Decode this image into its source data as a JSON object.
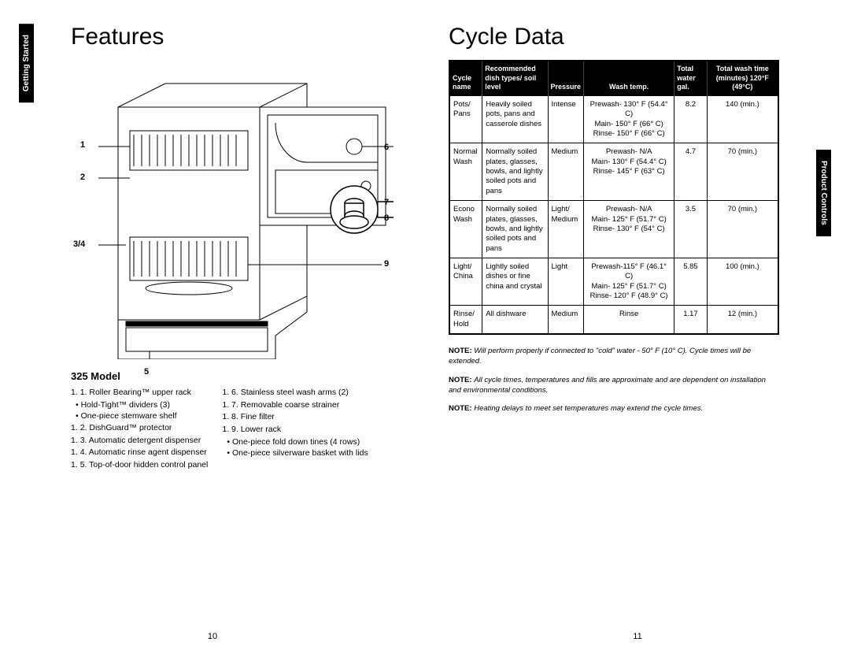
{
  "left": {
    "tab": "Getting Started",
    "title": "Features",
    "model_heading": "325 Model",
    "callouts": {
      "c1": "1",
      "c2": "2",
      "c34": "3/4",
      "c5": "5",
      "c6": "6",
      "c7": "7",
      "c8": "8",
      "c9": "9"
    },
    "features_col1": [
      {
        "n": "1.",
        "text": "Roller Bearing™ upper rack",
        "subs": [
          "Hold-Tight™ dividers (3)",
          "One-piece stemware shelf"
        ]
      },
      {
        "n": "2.",
        "text": "DishGuard™ protector"
      },
      {
        "n": "3.",
        "text": "Automatic detergent dispenser"
      },
      {
        "n": "4.",
        "text": "Automatic rinse agent dispenser"
      },
      {
        "n": "5.",
        "text": "Top-of-door hidden control panel"
      }
    ],
    "features_col2": [
      {
        "n": "6.",
        "text": "Stainless steel wash arms (2)"
      },
      {
        "n": "7.",
        "text": "Removable coarse strainer"
      },
      {
        "n": "8.",
        "text": "Fine filter"
      },
      {
        "n": "9.",
        "text": "Lower rack",
        "subs": [
          "One-piece fold down tines (4 rows)",
          "One-piece silverware basket with lids"
        ]
      }
    ],
    "page_number": "10"
  },
  "right": {
    "tab": "Product Controls",
    "title": "Cycle Data",
    "table": {
      "headers": {
        "cycle": "Cycle name",
        "dish": "Recommended dish types/ soil level",
        "pressure": "Pressure",
        "wash": "Wash temp.",
        "water": "Total water gal.",
        "time": "Total wash time (minutes) 120°F (49°C)"
      },
      "rows": [
        {
          "cycle": "Pots/ Pans",
          "dish": "Heavily soiled pots, pans and casserole dishes",
          "pressure": "Intense",
          "wash": "Prewash- 130° F (54.4° C)\nMain- 150° F (66° C)\nRinse- 150° F (66° C)",
          "water": "8.2",
          "time": "140 (min.)"
        },
        {
          "cycle": "Normal Wash",
          "dish": "Normally soiled plates, glasses, bowls, and lightly soiled pots and pans",
          "pressure": "Medium",
          "wash": "Prewash- N/A\nMain- 130° F (54.4° C)\nRinse- 145° F (63° C)",
          "water": "4.7",
          "time": "70 (min.)"
        },
        {
          "cycle": "Econo Wash",
          "dish": "Normally soiled plates, glasses, bowls, and lightly soiled pots and pans",
          "pressure": "Light/ Medium",
          "wash": "Prewash- N/A\nMain- 125° F (51.7° C)\nRinse- 130° F (54° C)",
          "water": "3.5",
          "time": "70 (min.)"
        },
        {
          "cycle": "Light/ China",
          "dish": "Lightly soiled dishes or fine china and crystal",
          "pressure": "Light",
          "wash": "Prewash-115° F (46.1° C)\nMain- 125° F (51.7° C)\nRinse- 120° F (48.9° C)",
          "water": "5.85",
          "time": "100 (min.)"
        },
        {
          "cycle": "Rinse/ Hold",
          "dish": "All dishware",
          "pressure": "Medium",
          "wash": "Rinse",
          "water": "1.17",
          "time": "12 (min.)"
        }
      ]
    },
    "notes": [
      "Will perform properly if connected to \"cold\" water - 50° F (10° C). Cycle times will be extended.",
      "All cycle times, temperatures and fills are approximate and are dependent on installation and environmental conditions.",
      "Heating delays to meet set temperatures may extend the cycle times."
    ],
    "note_label": "NOTE:",
    "page_number": "11"
  }
}
